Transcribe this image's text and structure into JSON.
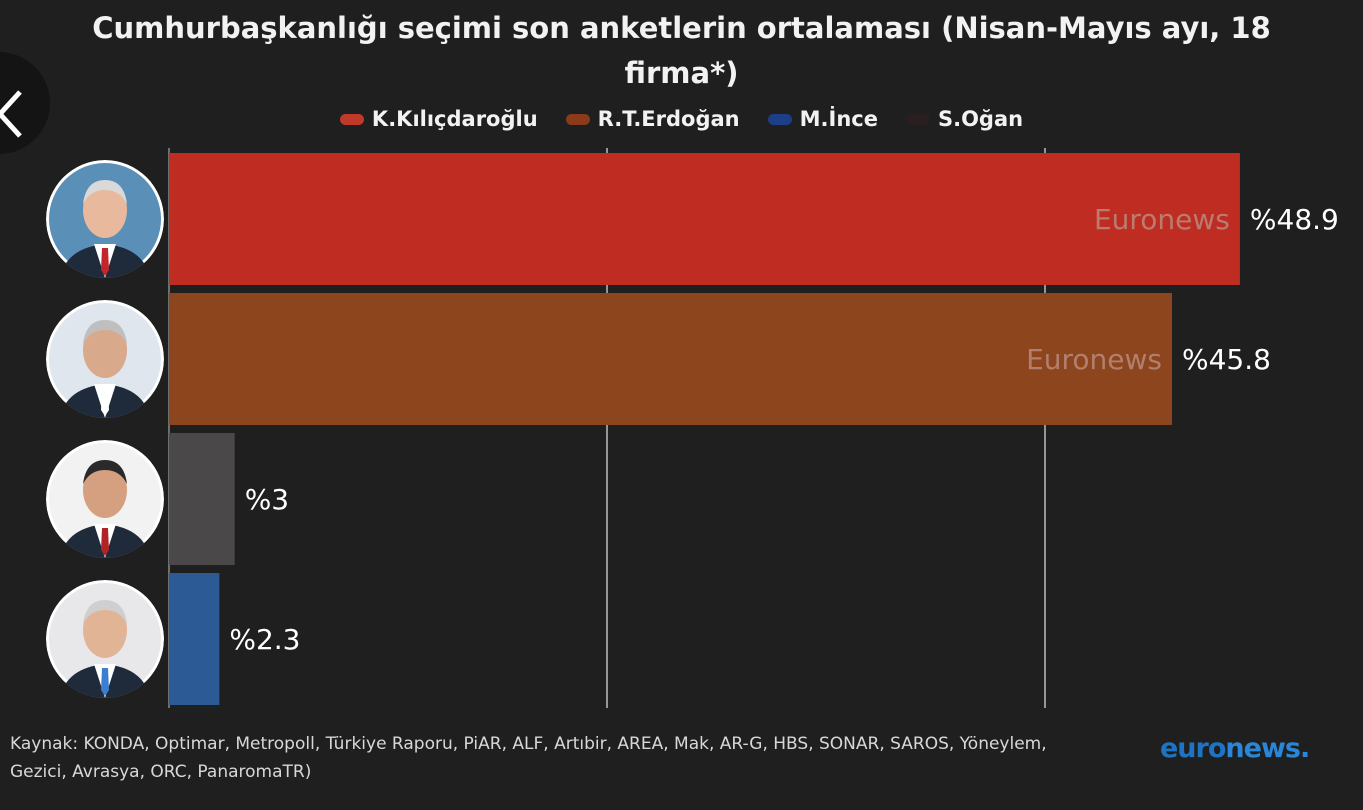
{
  "title": "Cumhurbaşkanlığı seçimi son anketlerin ortalaması (Nisan-Mayıs ayı, 18 firma*)",
  "legend": [
    {
      "label": "K.Kılıçdaroğlu",
      "color": "#c0392b"
    },
    {
      "label": "R.T.Erdoğan",
      "color": "#8b3a1a"
    },
    {
      "label": "M.İnce",
      "color": "#1c3f88"
    },
    {
      "label": "S.Oğan",
      "color": "#2a1f1f"
    }
  ],
  "chart_data": {
    "type": "bar",
    "orientation": "horizontal",
    "categories": [
      "K.Kılıçdaroğlu",
      "R.T.Erdoğan",
      "S.Oğan",
      "M.İnce"
    ],
    "values": [
      48.9,
      45.8,
      3,
      2.3
    ],
    "value_labels": [
      "%48.9",
      "%45.8",
      "%3",
      "%2.3"
    ],
    "bar_watermarks": [
      "Euronews",
      "Euronews",
      "",
      ""
    ],
    "colors": [
      "#bf2d22",
      "#8c451c",
      "#4a4848",
      "#2b5a94"
    ],
    "xlim": [
      0,
      50
    ],
    "grid": true,
    "legend_position": "top"
  },
  "source": "Kaynak: KONDA, Optimar, Metropoll, Türkiye Raporu, PiAR, ALF, Artıbir, AREA, Mak, AR-G, HBS, SONAR, SAROS, Yöneylem, Gezici, Avrasya, ORC, PanaromaTR)",
  "logo": {
    "part1": "euro",
    "part2": "news."
  },
  "icons": {
    "back": "chevron-left-icon",
    "portraits": "person-portrait-icon"
  }
}
